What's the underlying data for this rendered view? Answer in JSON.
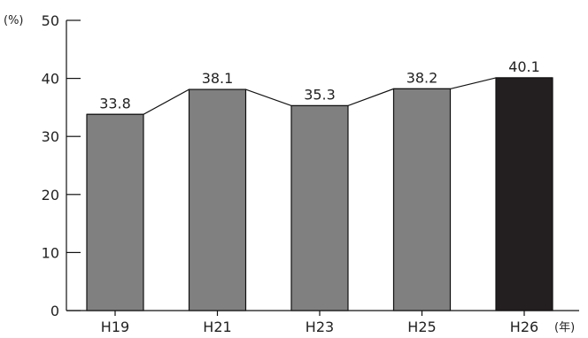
{
  "chart_data": {
    "type": "bar",
    "categories": [
      "H19",
      "H21",
      "H23",
      "H25",
      "H26"
    ],
    "values": [
      33.8,
      38.1,
      35.3,
      38.2,
      40.1
    ],
    "value_labels": [
      "33.8",
      "38.1",
      "35.3",
      "38.2",
      "40.1"
    ],
    "highlight_index": 4,
    "ylim": [
      0,
      50
    ],
    "yticks": [
      0,
      10,
      20,
      30,
      40,
      50
    ],
    "y_unit": "(%)",
    "x_unit": "(年)",
    "connector_line": true,
    "grid": false,
    "colors": {
      "bar": "#808080",
      "bar_highlight": "#231f20",
      "stroke": "#111111",
      "text": "#222222"
    }
  }
}
